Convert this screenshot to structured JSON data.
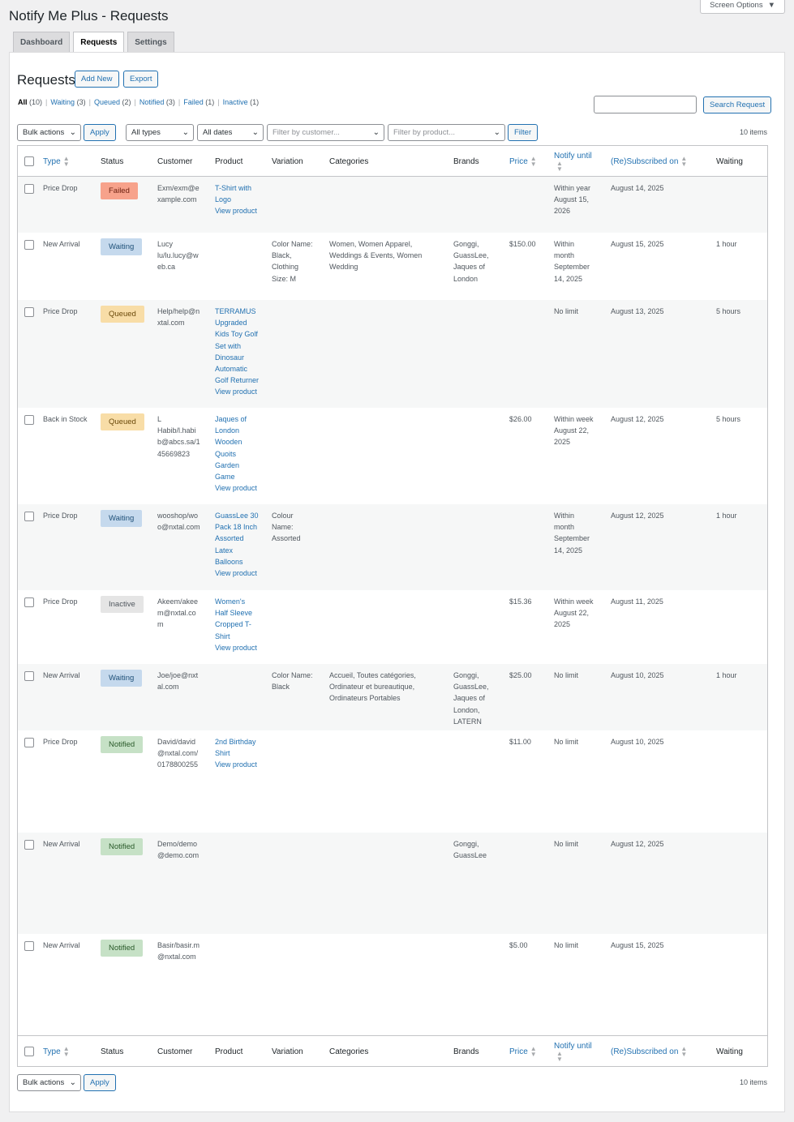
{
  "page": {
    "title": "Notify Me Plus - Requests",
    "screen_options": "Screen Options"
  },
  "tabs": [
    "Dashboard",
    "Requests",
    "Settings"
  ],
  "heading": "Requests",
  "buttons": {
    "add_new": "Add New",
    "export": "Export",
    "search": "Search Request",
    "apply": "Apply",
    "filter": "Filter"
  },
  "views": [
    {
      "label": "All",
      "count": "(10)"
    },
    {
      "label": "Waiting",
      "count": "(3)"
    },
    {
      "label": "Queued",
      "count": "(2)"
    },
    {
      "label": "Notified",
      "count": "(3)"
    },
    {
      "label": "Failed",
      "count": "(1)"
    },
    {
      "label": "Inactive",
      "count": "(1)"
    }
  ],
  "filters": {
    "bulk_actions": "Bulk actions",
    "types": "All types",
    "dates": "All dates",
    "customer_placeholder": "Filter by customer...",
    "product_placeholder": "Filter by product..."
  },
  "items_count": "10 items",
  "columns": {
    "type": "Type",
    "status": "Status",
    "customer": "Customer",
    "product": "Product",
    "variation": "Variation",
    "categories": "Categories",
    "brands": "Brands",
    "price": "Price",
    "notify_until": "Notify until",
    "subscribed_on": "(Re)Subscribed on",
    "waiting": "Waiting"
  },
  "rows": [
    {
      "type": "Price Drop",
      "status": "Failed",
      "customer": [
        "Exm/exm@e",
        "xample.com"
      ],
      "product": [
        "T-Shirt with",
        "Logo"
      ],
      "view": "View product",
      "variation": [],
      "categories": [],
      "brands": [],
      "price": "",
      "notify": [
        "Within year",
        "August 15,",
        "2026"
      ],
      "subscribed": "August 14, 2025",
      "waiting": ""
    },
    {
      "type": "New Arrival",
      "status": "Waiting",
      "customer": [
        "Lucy",
        "lu/lu.lucy@w",
        "eb.ca"
      ],
      "product": [],
      "view": "",
      "variation": [
        "Color Name:",
        "Black,",
        "Clothing",
        "Size: M"
      ],
      "categories": [
        "Women, Women Apparel,",
        "Weddings & Events, Women",
        "Wedding"
      ],
      "brands": [
        "Gonggi,",
        "GuassLee,",
        "Jaques of",
        "London"
      ],
      "price": "$150.00",
      "notify": [
        "Within",
        "month",
        "September",
        "14, 2025"
      ],
      "subscribed": "August 15, 2025",
      "waiting": "1 hour"
    },
    {
      "type": "Price Drop",
      "status": "Queued",
      "customer": [
        "Help/help@n",
        "xtal.com"
      ],
      "product": [
        "TERRAMUS",
        "Upgraded",
        "Kids Toy Golf",
        "Set with",
        "Dinosaur",
        "Automatic",
        "Golf Returner"
      ],
      "view": "View product",
      "variation": [],
      "categories": [],
      "brands": [],
      "price": "",
      "notify": [
        "No limit"
      ],
      "subscribed": "August 13, 2025",
      "waiting": "5 hours"
    },
    {
      "type": "Back in Stock",
      "status": "Queued",
      "customer": [
        "L",
        "Habib/l.habi",
        "b@abcs.sa/1",
        "45669823"
      ],
      "product": [
        "Jaques of",
        "London",
        "Wooden",
        "Quoits",
        "Garden",
        "Game"
      ],
      "view": "View product",
      "variation": [],
      "categories": [],
      "brands": [],
      "price": "$26.00",
      "notify": [
        "Within week",
        "August 22,",
        "2025"
      ],
      "subscribed": "August 12, 2025",
      "waiting": "5 hours"
    },
    {
      "type": "Price Drop",
      "status": "Waiting",
      "customer": [
        "wooshop/wo",
        "o@nxtal.com"
      ],
      "product": [
        "GuassLee 30",
        "Pack 18 Inch",
        "Assorted",
        "Latex",
        "Balloons"
      ],
      "view": "View product",
      "variation": [
        "Colour",
        "Name:",
        "Assorted"
      ],
      "categories": [],
      "brands": [],
      "price": "",
      "notify": [
        "Within",
        "month",
        "September",
        "14, 2025"
      ],
      "subscribed": "August 12, 2025",
      "waiting": "1 hour"
    },
    {
      "type": "Price Drop",
      "status": "Inactive",
      "customer": [
        "Akeem/akee",
        "m@nxtal.co",
        "m"
      ],
      "product": [
        "Women's",
        "Half Sleeve",
        "Cropped T-",
        "Shirt"
      ],
      "view": "View product",
      "variation": [],
      "categories": [],
      "brands": [],
      "price": "$15.36",
      "notify": [
        "Within week",
        "August 22,",
        "2025"
      ],
      "subscribed": "August 11, 2025",
      "waiting": ""
    },
    {
      "type": "New Arrival",
      "status": "Waiting",
      "customer": [
        "Joe/joe@nxt",
        "al.com"
      ],
      "product": [],
      "view": "",
      "variation": [
        "Color Name:",
        "Black"
      ],
      "categories": [
        "Accueil, Toutes catégories,",
        "Ordinateur et bureautique,",
        "Ordinateurs Portables"
      ],
      "brands": [
        "Gonggi,",
        "GuassLee,",
        "Jaques of",
        "London,",
        "LATERN"
      ],
      "price": "$25.00",
      "notify": [
        "No limit"
      ],
      "subscribed": "August 10, 2025",
      "waiting": "1 hour"
    },
    {
      "type": "Price Drop",
      "status": "Notified",
      "customer": [
        "David/david",
        "@nxtal.com/",
        "0178800255"
      ],
      "product": [
        "2nd Birthday",
        "Shirt"
      ],
      "view": "View product",
      "variation": [],
      "categories": [],
      "brands": [],
      "price": "$11.00",
      "notify": [
        "No limit"
      ],
      "subscribed": "August 10, 2025",
      "waiting": ""
    },
    {
      "type": "New Arrival",
      "status": "Notified",
      "customer": [
        "Demo/demo",
        "@demo.com"
      ],
      "product": [],
      "view": "",
      "variation": [],
      "categories": [],
      "brands": [
        "Gonggi,",
        "GuassLee"
      ],
      "price": "",
      "notify": [
        "No limit"
      ],
      "subscribed": "August 12, 2025",
      "waiting": ""
    },
    {
      "type": "New Arrival",
      "status": "Notified",
      "customer": [
        "Basir/basir.m",
        "@nxtal.com"
      ],
      "product": [],
      "view": "",
      "variation": [],
      "categories": [],
      "brands": [],
      "price": "$5.00",
      "notify": [
        "No limit"
      ],
      "subscribed": "August 15, 2025",
      "waiting": ""
    }
  ]
}
